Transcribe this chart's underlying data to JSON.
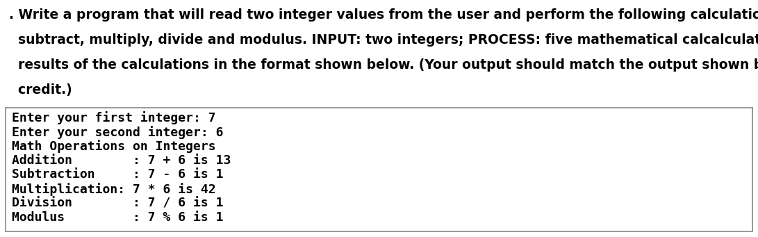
{
  "description_lines": [
    ". Write a program that will read two integer values from the user and perform the following calculations on them: add,",
    "  subtract, multiply, divide and modulus. INPUT: two integers; PROCESS: five mathematical calcalculations; OUTPUT: the",
    "  results of the calculations in the format shown below. (Your output should match the output shown below for full",
    "  credit.)"
  ],
  "code_lines": [
    "Enter your first integer: 7",
    "Enter your second integer: 6",
    "Math Operations on Integers",
    "Addition        : 7 + 6 is 13",
    "Subtraction     : 7 - 6 is 1",
    "Multiplication: 7 * 6 is 42",
    "Division        : 7 / 6 is 1",
    "Modulus         : 7 % 6 is 1"
  ],
  "bg_color": "#ffffff",
  "text_color": "#000000",
  "box_border_color": "#888888",
  "desc_fontsize": 13.5,
  "code_fontsize": 13.0,
  "desc_font": "DejaVu Sans",
  "desc_weight": "bold",
  "code_font": "DejaVu Sans Mono",
  "code_weight": "bold",
  "fig_width": 10.91,
  "fig_height": 3.41,
  "dpi": 100
}
